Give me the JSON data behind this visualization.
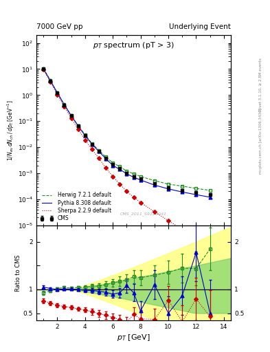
{
  "title_left": "7000 GeV pp",
  "title_right": "Underlying Event",
  "main_title": "p_{T} spectrum (pT > 3)",
  "xlabel": "p_{T} [GeV]",
  "ylabel_main": "1/N_{ev} dN_{ch} / dp_{T} [GeV^{-1}]",
  "ylabel_ratio": "Ratio to CMS",
  "right_label_top": "Rivet 3.1.10, ≥ 2.8M events",
  "right_label_bot": "mcplots.cern.ch [arXiv:1306.3436]",
  "watermark": "CMS_2011_S9120041",
  "cms_x": [
    1.0,
    1.5,
    2.0,
    2.5,
    3.0,
    3.5,
    4.0,
    4.5,
    5.0,
    5.5,
    6.0,
    6.5,
    7.0,
    7.5,
    8.0,
    9.0,
    10.0,
    11.0,
    12.0,
    13.0
  ],
  "cms_y": [
    10.0,
    3.5,
    1.2,
    0.42,
    0.16,
    0.065,
    0.028,
    0.013,
    0.007,
    0.0038,
    0.0022,
    0.0015,
    0.001,
    0.00075,
    0.0006,
    0.0004,
    0.00028,
    0.00022,
    0.00018,
    0.00015
  ],
  "cms_yerr": [
    0.8,
    0.25,
    0.09,
    0.033,
    0.013,
    0.005,
    0.002,
    0.001,
    0.0005,
    0.0003,
    0.00018,
    0.00012,
    8e-05,
    6e-05,
    5e-05,
    3e-05,
    2e-05,
    2e-05,
    2e-05,
    2e-05
  ],
  "herwig_x": [
    1.0,
    1.5,
    2.0,
    2.5,
    3.0,
    3.5,
    4.0,
    4.5,
    5.0,
    5.5,
    6.0,
    6.5,
    7.0,
    7.5,
    8.0,
    9.0,
    10.0,
    11.0,
    12.0,
    13.0
  ],
  "herwig_y": [
    10.5,
    3.7,
    1.25,
    0.44,
    0.165,
    0.068,
    0.03,
    0.014,
    0.0075,
    0.0042,
    0.0025,
    0.0018,
    0.0012,
    0.00095,
    0.00075,
    0.00052,
    0.00038,
    0.00032,
    0.00026,
    0.00022
  ],
  "pythia_x": [
    1.0,
    1.5,
    2.0,
    2.5,
    3.0,
    3.5,
    4.0,
    4.5,
    5.0,
    5.5,
    6.0,
    6.5,
    7.0,
    7.5,
    8.0,
    9.0,
    10.0,
    11.0,
    12.0,
    13.0
  ],
  "pythia_y": [
    10.2,
    3.6,
    1.22,
    0.43,
    0.162,
    0.066,
    0.028,
    0.013,
    0.0068,
    0.0036,
    0.002,
    0.0014,
    0.00095,
    0.0007,
    0.00055,
    0.00035,
    0.00025,
    0.00019,
    0.00015,
    0.00012
  ],
  "sherpa_x": [
    1.0,
    1.5,
    2.0,
    2.5,
    3.0,
    3.5,
    4.0,
    4.5,
    5.0,
    5.5,
    6.0,
    6.5,
    7.0,
    7.5,
    8.0,
    9.0,
    10.0,
    11.0,
    12.0,
    13.0
  ],
  "sherpa_y": [
    9.5,
    3.2,
    1.05,
    0.36,
    0.13,
    0.05,
    0.019,
    0.0082,
    0.0037,
    0.0016,
    0.00075,
    0.00038,
    0.0002,
    0.00012,
    7.5e-05,
    3.3e-05,
    1.5e-05,
    7e-06,
    3.5e-06,
    1.8e-06
  ],
  "ratio_herwig_x": [
    1.0,
    1.5,
    2.0,
    2.5,
    3.0,
    3.5,
    4.0,
    4.5,
    5.0,
    5.5,
    6.0,
    6.5,
    7.0,
    7.5,
    8.0,
    9.0,
    10.0,
    11.0,
    12.0,
    13.0
  ],
  "ratio_herwig_y": [
    0.93,
    0.97,
    1.02,
    1.04,
    1.03,
    1.04,
    1.05,
    1.07,
    1.07,
    1.1,
    1.14,
    1.17,
    1.2,
    1.27,
    1.25,
    1.3,
    1.36,
    1.45,
    1.44,
    1.85
  ],
  "ratio_herwig_yerr": [
    0.04,
    0.03,
    0.03,
    0.03,
    0.03,
    0.03,
    0.04,
    0.05,
    0.06,
    0.07,
    0.08,
    0.1,
    0.12,
    0.14,
    0.16,
    0.2,
    0.25,
    0.3,
    0.35,
    0.45
  ],
  "ratio_pythia_x": [
    1.0,
    1.5,
    2.0,
    2.5,
    3.0,
    3.5,
    4.0,
    4.5,
    5.0,
    5.5,
    6.0,
    6.5,
    7.0,
    7.5,
    8.0,
    9.0,
    10.0,
    11.0,
    12.0,
    13.0
  ],
  "ratio_pythia_y": [
    1.05,
    1.02,
    1.0,
    1.01,
    1.01,
    1.0,
    0.98,
    0.98,
    0.96,
    0.94,
    0.9,
    0.93,
    1.08,
    0.93,
    0.55,
    1.1,
    0.5,
    0.87,
    1.78,
    0.5
  ],
  "ratio_pythia_yerr": [
    0.04,
    0.03,
    0.03,
    0.03,
    0.03,
    0.03,
    0.04,
    0.05,
    0.06,
    0.07,
    0.08,
    0.1,
    0.15,
    0.18,
    0.2,
    0.3,
    0.35,
    0.4,
    0.6,
    0.7
  ],
  "ratio_sherpa_x": [
    1.0,
    1.5,
    2.0,
    2.5,
    3.0,
    3.5,
    4.0,
    4.5,
    5.0,
    5.5,
    6.0,
    6.5,
    7.0,
    7.5,
    8.0,
    9.0,
    10.0,
    11.0,
    12.0,
    13.0
  ],
  "ratio_sherpa_y": [
    0.76,
    0.71,
    0.67,
    0.64,
    0.62,
    0.59,
    0.57,
    0.53,
    0.49,
    0.46,
    0.41,
    0.37,
    0.3,
    0.48,
    0.38,
    0.37,
    0.77,
    0.32,
    0.8,
    0.43
  ],
  "ratio_sherpa_yerr": [
    0.05,
    0.04,
    0.04,
    0.04,
    0.04,
    0.04,
    0.05,
    0.06,
    0.07,
    0.08,
    0.09,
    0.1,
    0.12,
    0.15,
    0.18,
    0.22,
    0.3,
    0.35,
    0.45,
    0.55
  ],
  "cms_color": "#000000",
  "herwig_color": "#228B22",
  "pythia_color": "#0000cc",
  "sherpa_color": "#cc0000",
  "band_yellow": "#ffff66",
  "band_green": "#66cc66",
  "xlim": [
    0.5,
    14.5
  ],
  "ylim_main": [
    1e-05,
    200.0
  ],
  "ylim_ratio": [
    0.35,
    2.35
  ]
}
